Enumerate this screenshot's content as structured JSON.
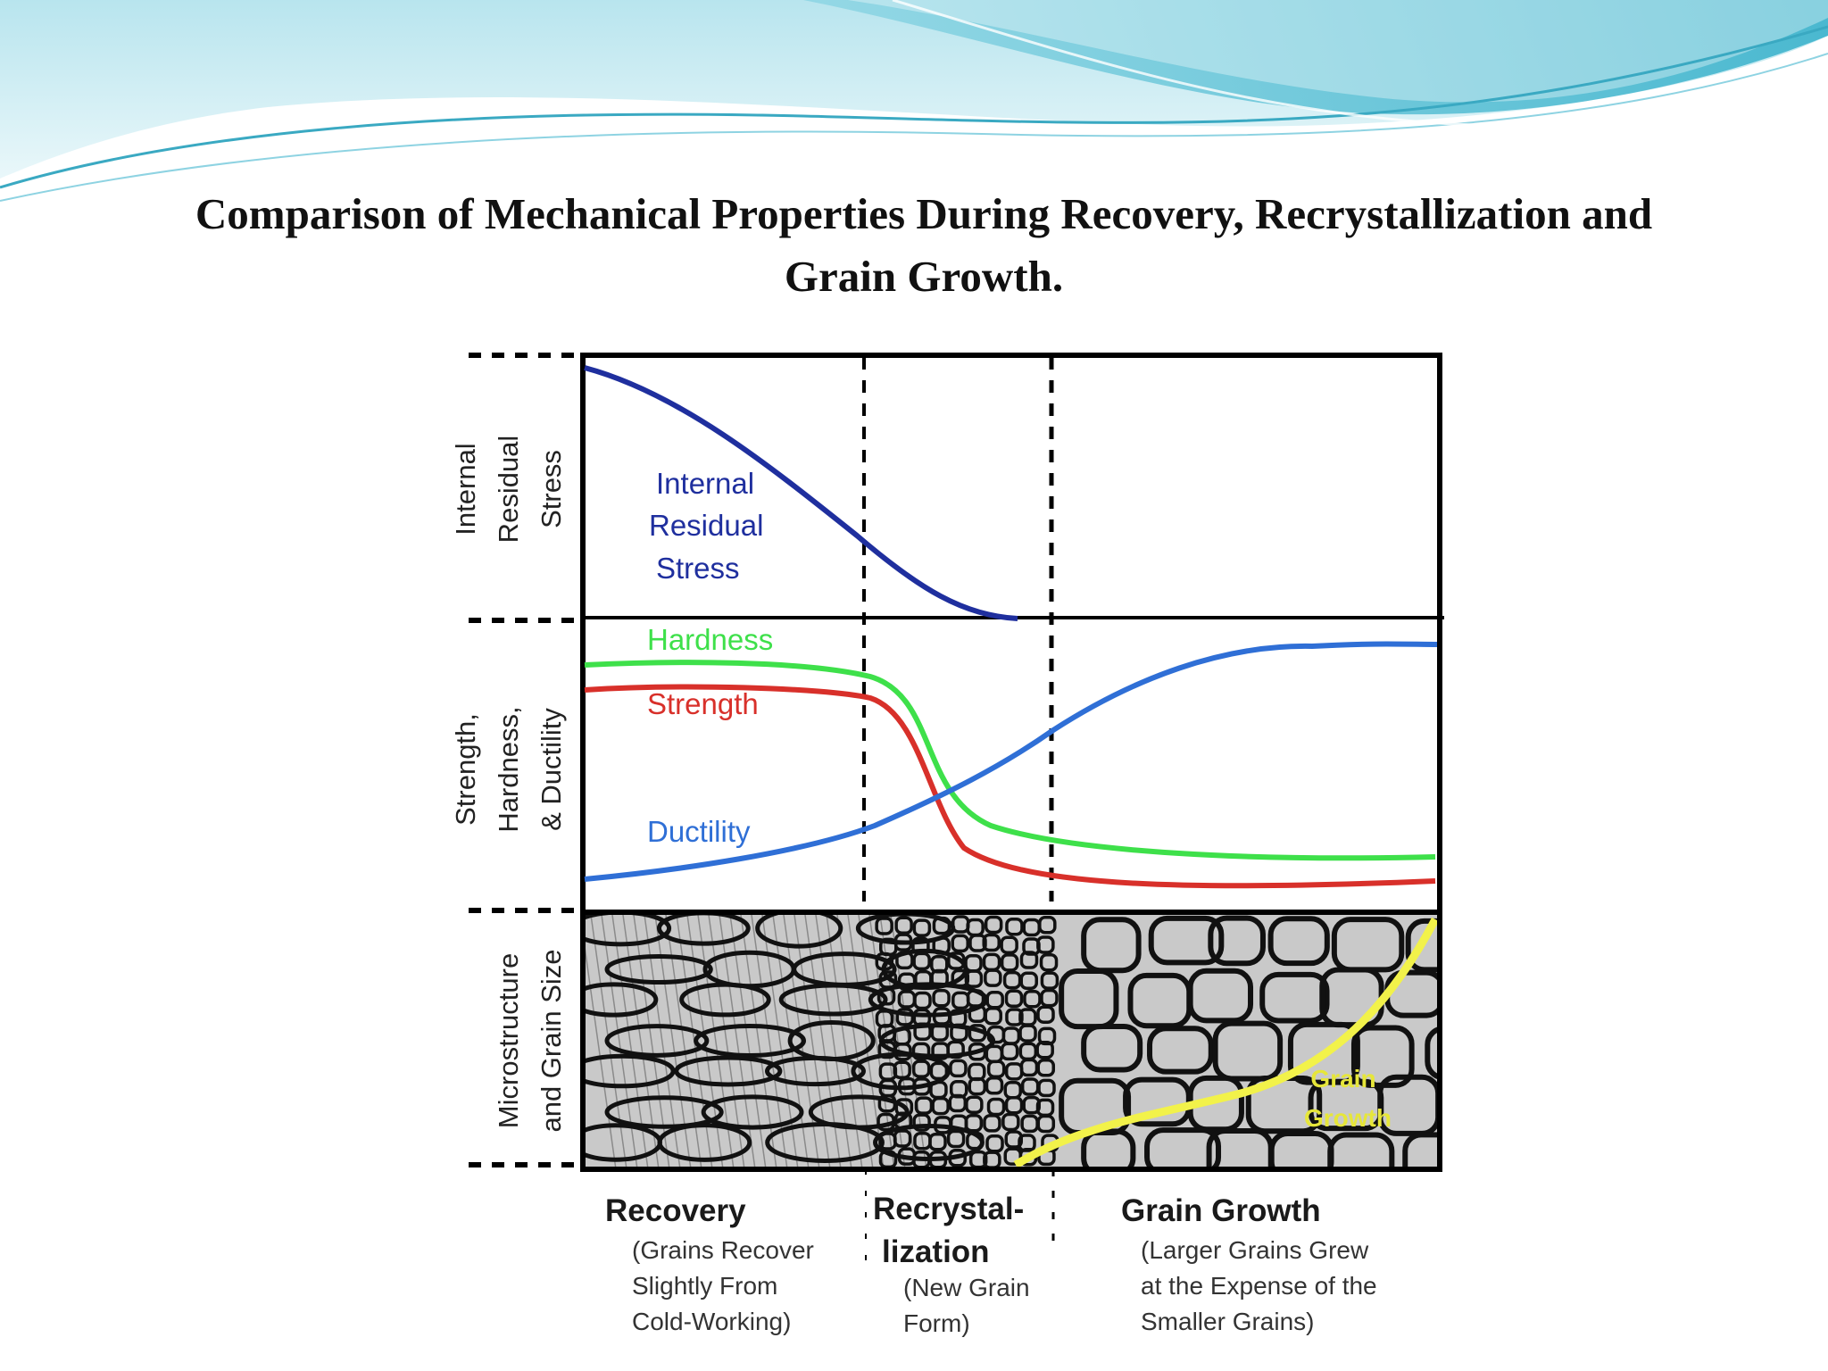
{
  "slide": {
    "title_line1": "Comparison of Mechanical Properties During Recovery, Recrystallization and",
    "title_line2": "Grain Growth."
  },
  "colors": {
    "stress": "#1f2f9e",
    "hardness": "#3ee04a",
    "strength": "#d8302a",
    "ductility": "#2f6fd6",
    "grain_growth": "#f2f24a",
    "micro_bg": "#c9c9c9",
    "banner": "#5cc6d8"
  },
  "axes": {
    "panel1": {
      "line1": "Internal",
      "line2": "Residual",
      "line3": "Stress"
    },
    "panel2": {
      "line1": "Strength,",
      "line2": "Hardness,",
      "line3": "& Ductility"
    },
    "panel3": {
      "line1": "Microstructure",
      "line2": "and Grain Size"
    }
  },
  "curves": {
    "stress": {
      "line1": "Internal",
      "line2": "Residual",
      "line3": "Stress"
    },
    "hardness": "Hardness",
    "strength": "Strength",
    "ductility": "Ductility",
    "grain_growth": {
      "line1": "Grain",
      "line2": "Growth"
    }
  },
  "stages": {
    "recovery": {
      "title": "Recovery",
      "desc1": "(Grains Recover",
      "desc2": "Slightly From",
      "desc3": "Cold-Working)"
    },
    "recrystallization": {
      "title1": "Recrystal-",
      "title2": "lization",
      "desc1": "(New Grain",
      "desc2": "Form)"
    },
    "grain_growth": {
      "title": "Grain Growth",
      "desc1": "(Larger Grains Grew",
      "desc2": "at the Expense of the",
      "desc3": "Smaller Grains)"
    }
  }
}
